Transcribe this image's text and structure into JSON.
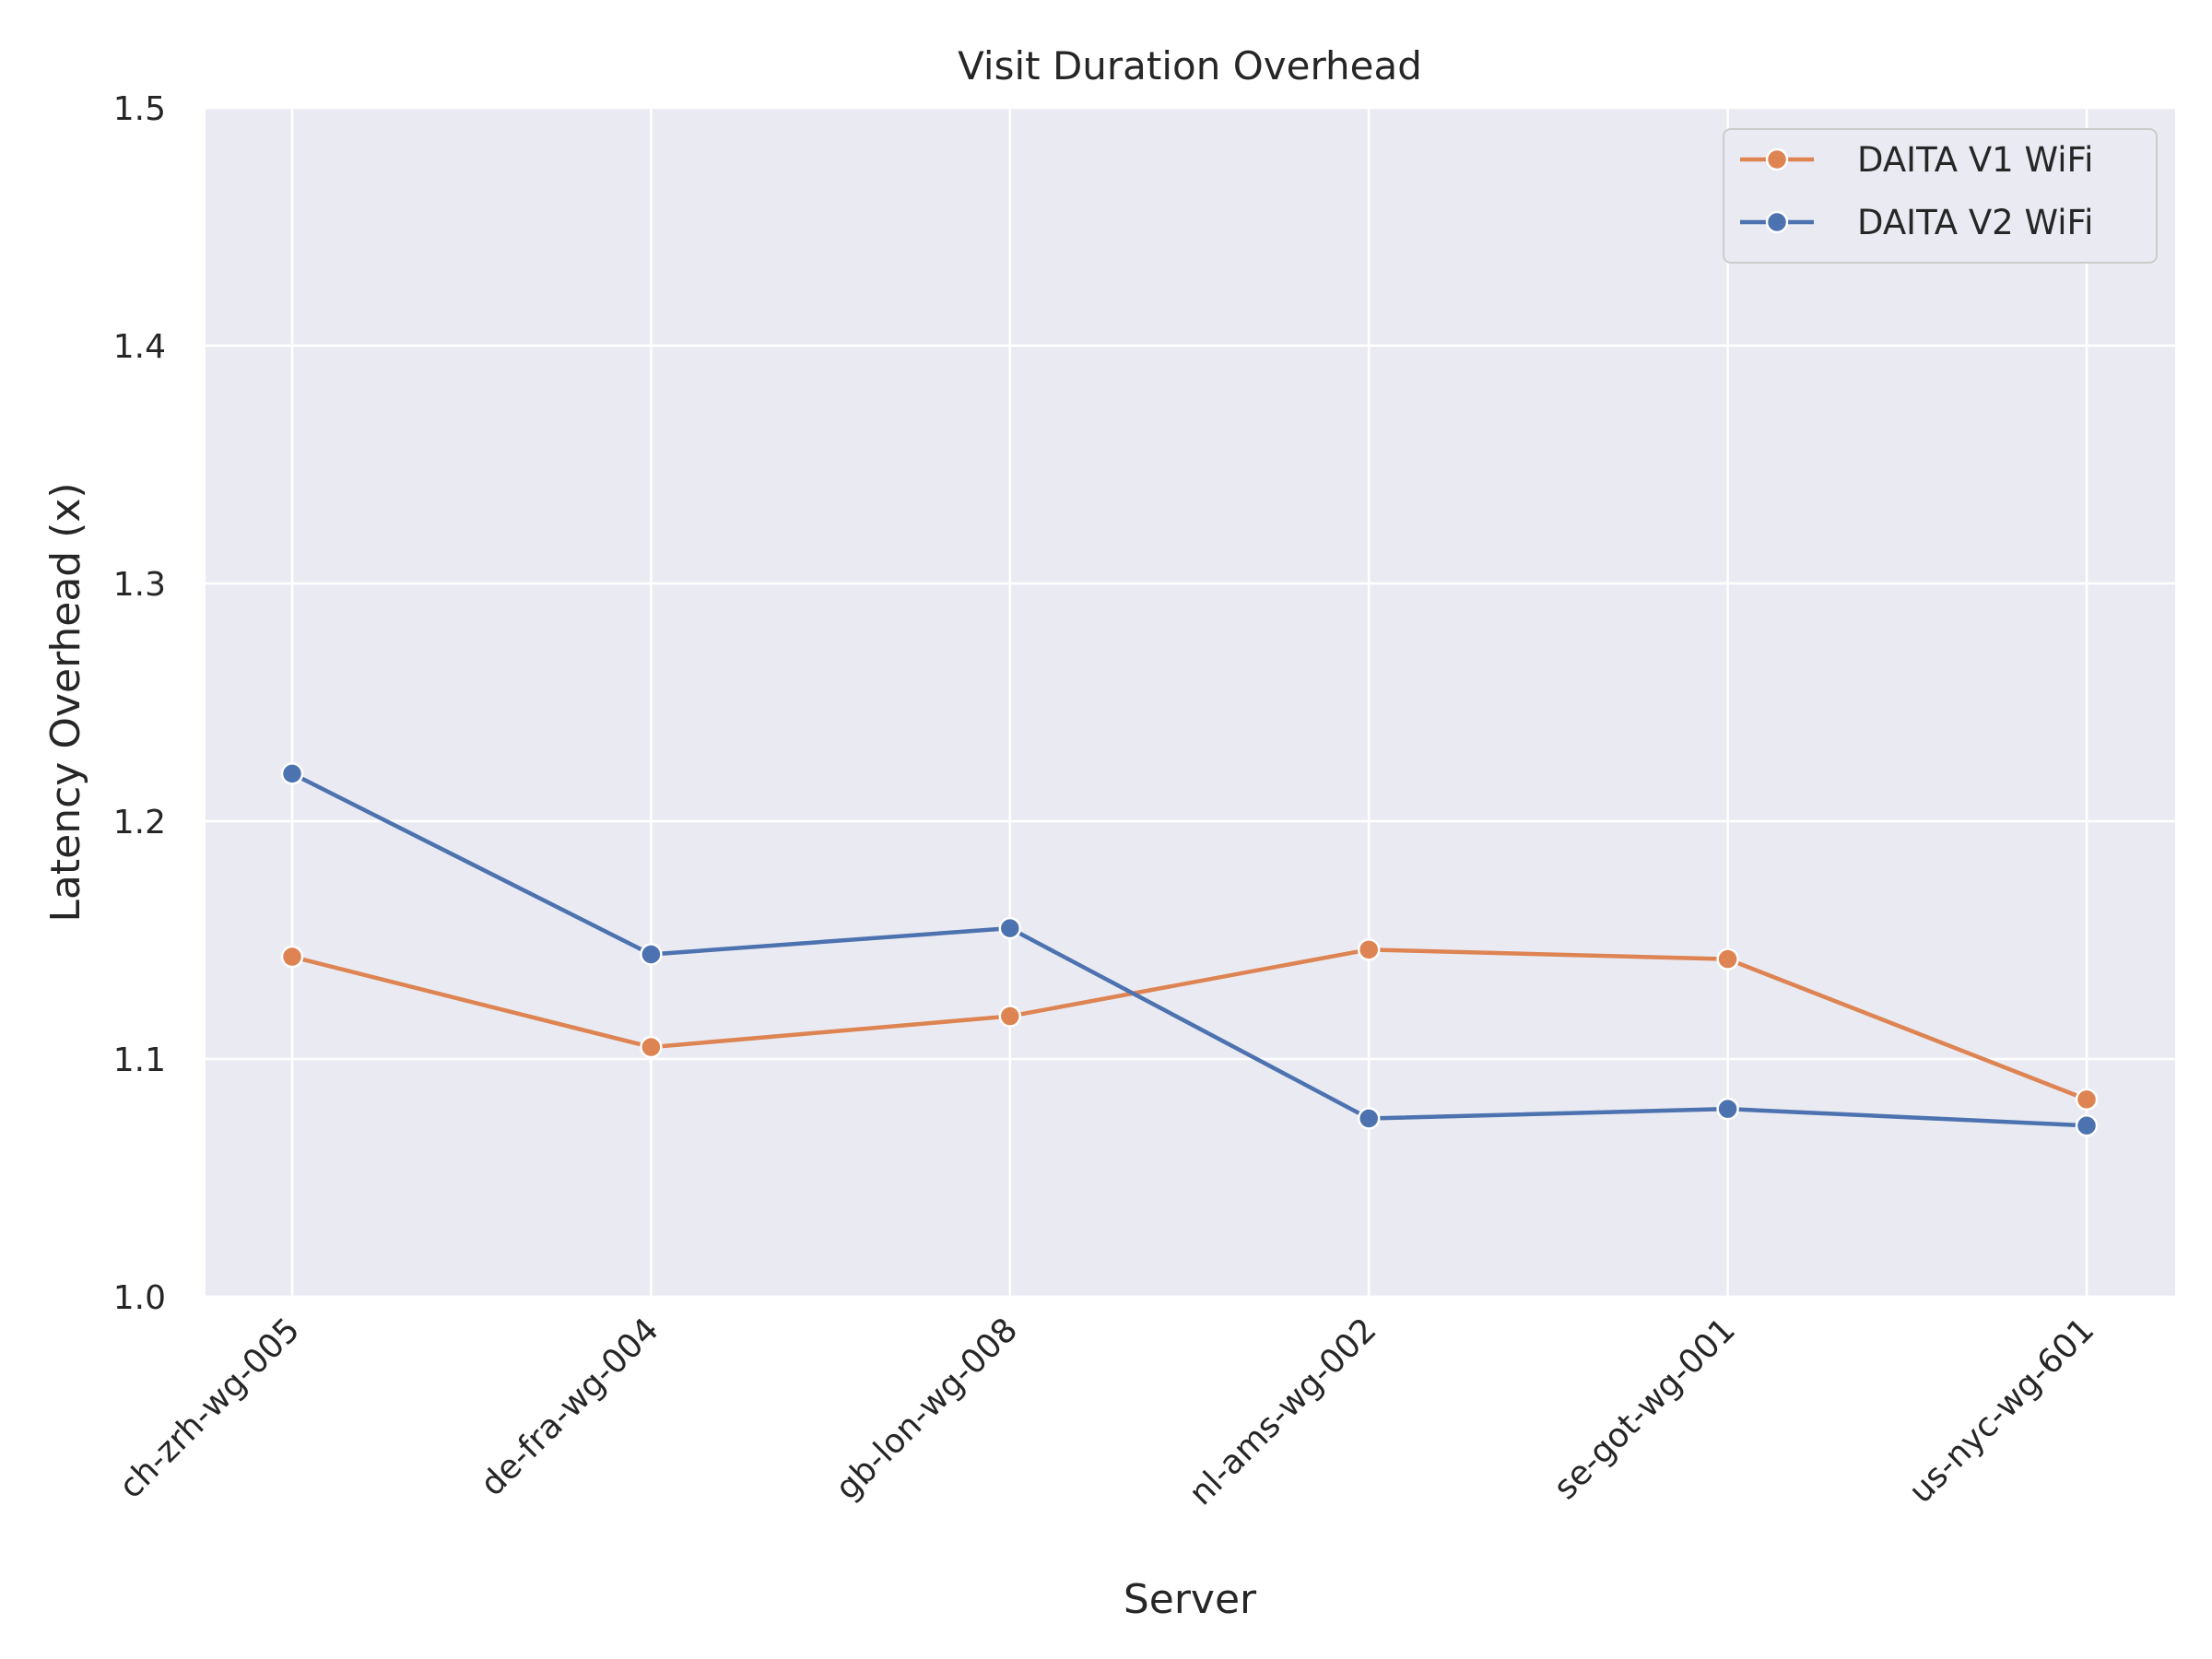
{
  "chart_data": {
    "type": "line",
    "title": "Visit Duration Overhead",
    "xlabel": "Server",
    "ylabel": "Latency Overhead (x)",
    "categories": [
      "ch-zrh-wg-005",
      "de-fra-wg-004",
      "gb-lon-wg-008",
      "nl-ams-wg-002",
      "se-got-wg-001",
      "us-nyc-wg-601"
    ],
    "ylim": [
      1.0,
      1.5
    ],
    "yticks": [
      "1.0",
      "1.1",
      "1.2",
      "1.3",
      "1.4",
      "1.5"
    ],
    "grid": true,
    "legend_position": "top-right",
    "series": [
      {
        "name": "DAITA V1 WiFi",
        "color": "#dd8452",
        "marker": "circle",
        "values": [
          1.143,
          1.105,
          1.118,
          1.146,
          1.142,
          1.083
        ]
      },
      {
        "name": "DAITA V2 WiFi",
        "color": "#4c72b0",
        "marker": "circle",
        "values": [
          1.22,
          1.144,
          1.155,
          1.075,
          1.079,
          1.072
        ]
      }
    ]
  }
}
